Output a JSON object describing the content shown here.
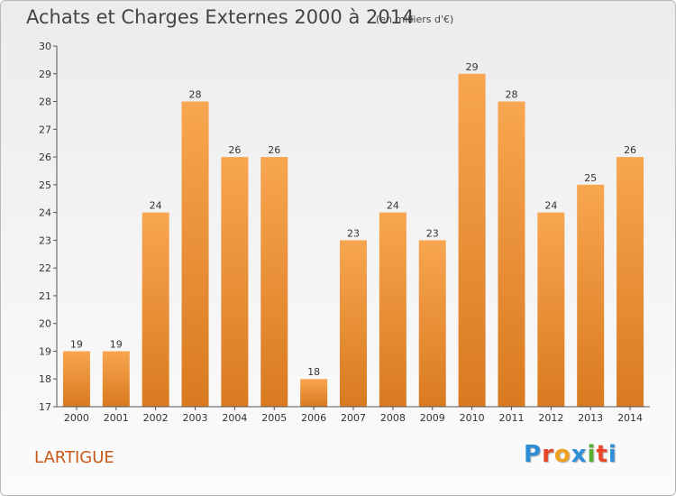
{
  "title": "Achats et Charges Externes 2000 à 2014",
  "unit": "(en milliers d'€)",
  "commune": "LARTIGUE",
  "logo": {
    "letters": [
      "P",
      "r",
      "o",
      "x",
      "i",
      "t",
      "i"
    ],
    "colors": [
      "#2e8fd6",
      "#e8472c",
      "#f0a020",
      "#2e8fd6",
      "#5ab034",
      "#e8472c",
      "#2e8fd6"
    ]
  },
  "colors": {
    "bar_top": "#f8a650",
    "bar_bottom": "#d97a20",
    "label": "#333333",
    "axis": "#555555"
  },
  "chart_data": {
    "type": "bar",
    "categories": [
      "2000",
      "2001",
      "2002",
      "2003",
      "2004",
      "2005",
      "2006",
      "2007",
      "2008",
      "2009",
      "2010",
      "2011",
      "2012",
      "2013",
      "2014"
    ],
    "values": [
      19,
      19,
      24,
      28,
      26,
      26,
      18,
      23,
      24,
      23,
      29,
      28,
      24,
      25,
      26
    ],
    "ylim": [
      17,
      30
    ],
    "yticks": [
      17,
      18,
      19,
      20,
      21,
      22,
      23,
      24,
      25,
      26,
      27,
      28,
      29,
      30
    ],
    "grid": false,
    "data_labels": true
  }
}
